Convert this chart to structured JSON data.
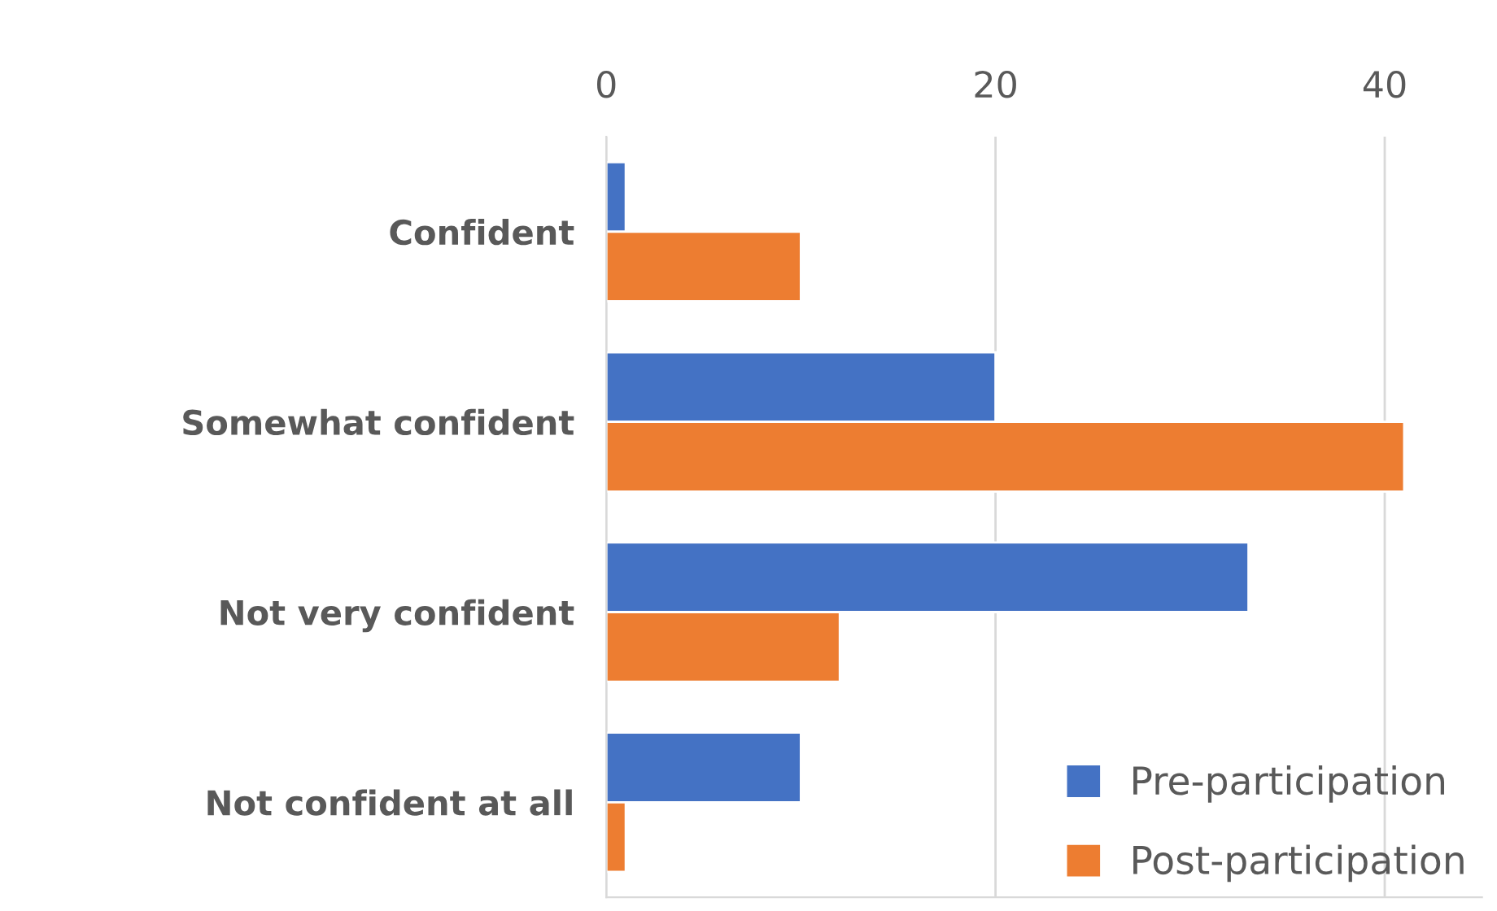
{
  "chart_data": {
    "type": "bar",
    "orientation": "horizontal",
    "categories": [
      "Confident",
      "Somewhat confident",
      "Not very confident",
      "Not confident at all"
    ],
    "series": [
      {
        "name": "Pre-participation",
        "color": "#4472c4",
        "values": [
          1,
          20,
          33,
          10
        ]
      },
      {
        "name": "Post-participation",
        "color": "#ed7d31",
        "values": [
          10,
          41,
          12,
          1
        ]
      }
    ],
    "xlim": [
      0,
      45
    ],
    "xticks": [
      0,
      20,
      40
    ],
    "grid": "x",
    "legend": "bottom right"
  }
}
